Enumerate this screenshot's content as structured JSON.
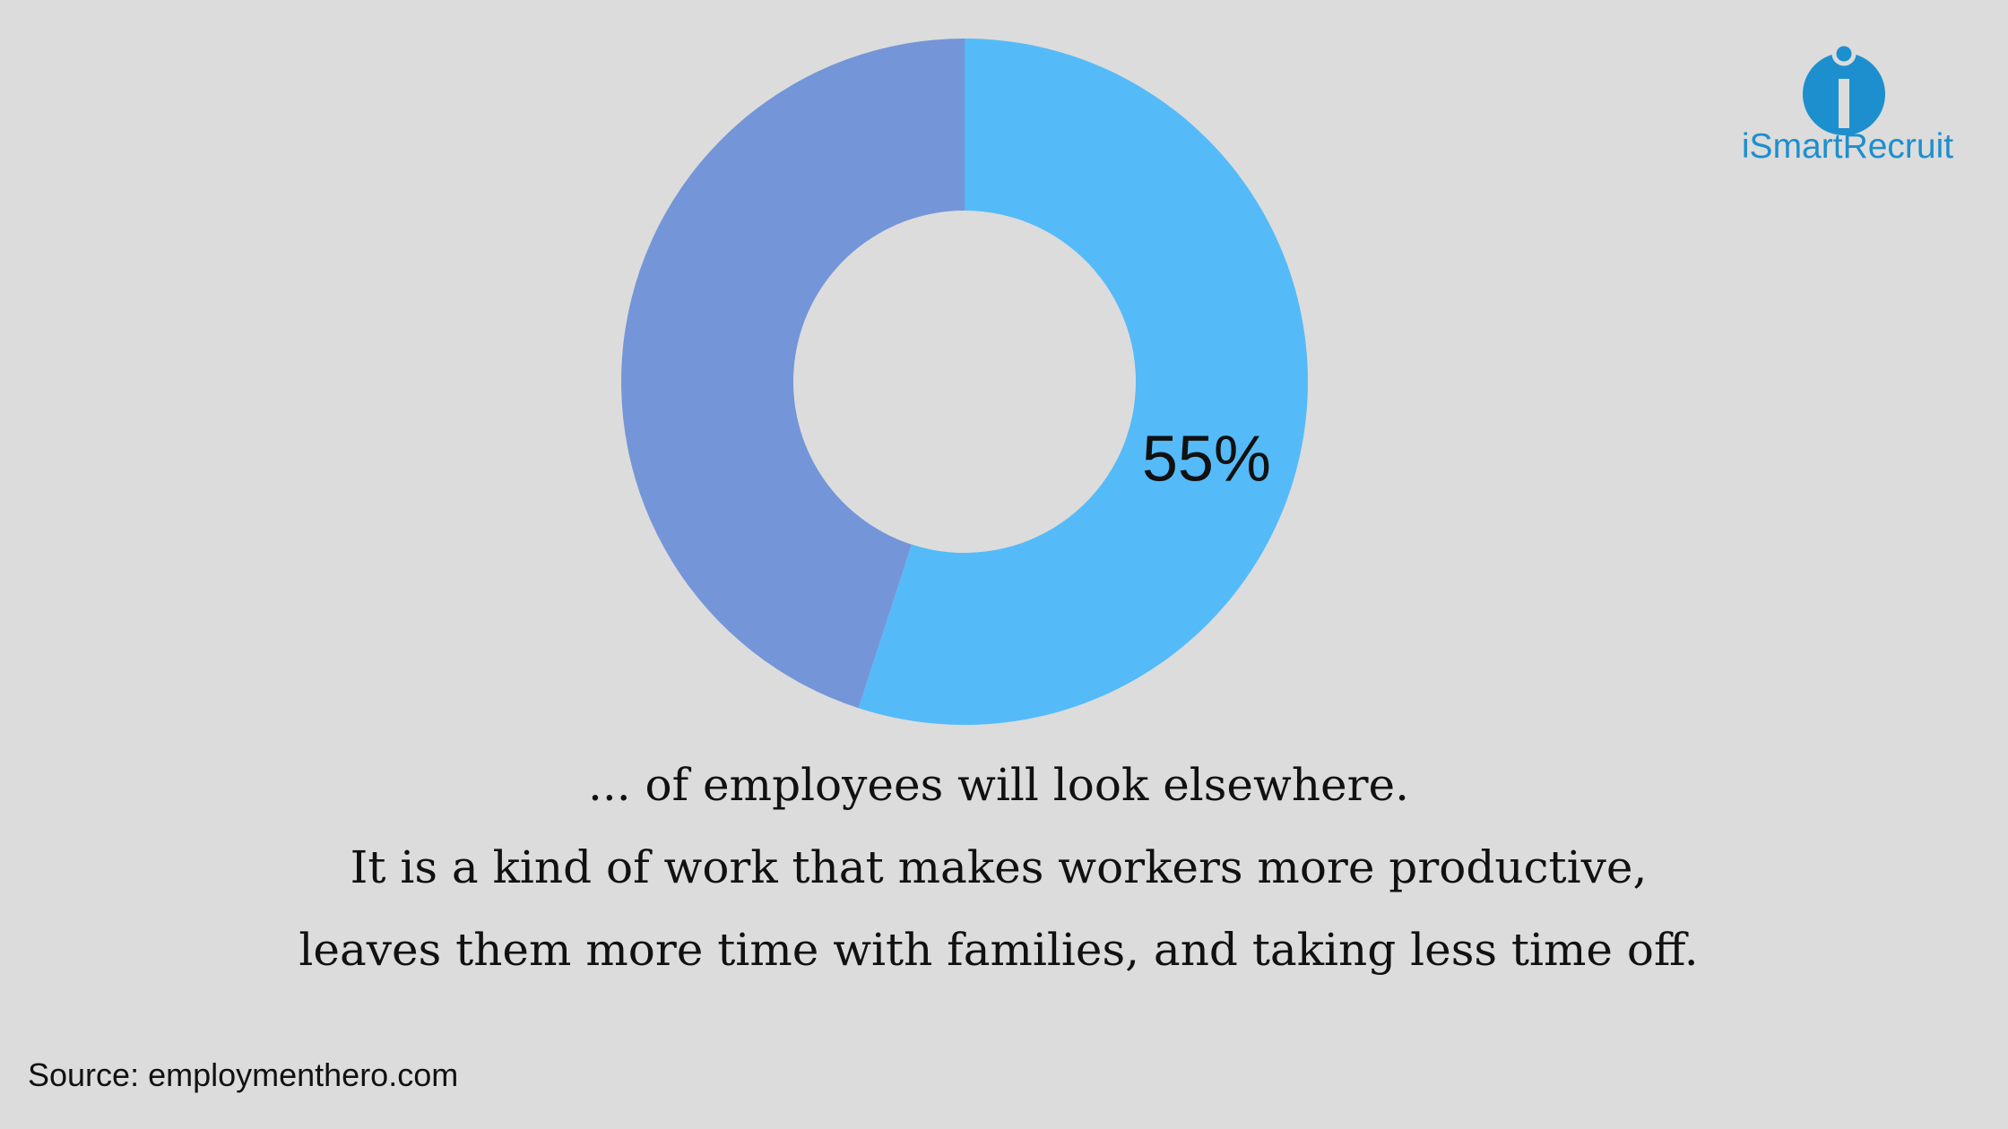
{
  "chart_data": {
    "type": "donut",
    "values": [
      55,
      45
    ],
    "value_labels": [
      "55%",
      null
    ],
    "colors": [
      "#55bbf8",
      "#7496d8"
    ],
    "caption": [
      "... of employees will look elsewhere.",
      "It is a kind of work that makes workers more productive,",
      "leaves them more time with families, and taking less time off."
    ],
    "source": "Source: employmenthero.com",
    "logo": "iSmartRecruit"
  }
}
